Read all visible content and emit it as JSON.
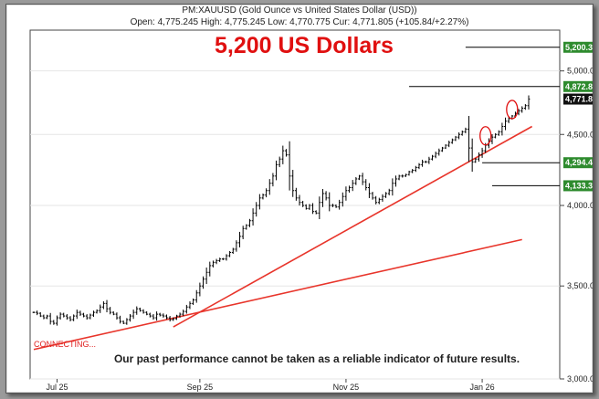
{
  "header": {
    "title": "PM:XAUUSD (Gold Ounce vs United States Dollar (USD))",
    "ohlc": "Open: 4,775.245 High: 4,775.245 Low: 4,770.775 Cur: 4,771.805 (+105.84/+2.27%)"
  },
  "annotation": {
    "headline": "5,200 US Dollars",
    "disclaimer": "Our past performance cannot be taken as a reliable indicator of future results.",
    "status": "CONNECTING..."
  },
  "colors": {
    "candle": "#000000",
    "trendline": "#e8352b",
    "circle": "#e01010",
    "target_box": "#2e8b2e",
    "current_box": "#111111",
    "headline": "#e01010"
  },
  "chart_data": {
    "type": "candlestick",
    "y_scale": "log",
    "ylim": [
      3000,
      5350
    ],
    "y_ticks": [
      {
        "value": 3000,
        "label": "3,000.0"
      },
      {
        "value": 3500,
        "label": "3,500.0"
      },
      {
        "value": 4000,
        "label": "4,000.0"
      },
      {
        "value": 4500,
        "label": "4,500.0"
      },
      {
        "value": 5000,
        "label": "5,000.0"
      }
    ],
    "x_ticks": [
      {
        "index": 7,
        "label": "Jul 25"
      },
      {
        "index": 50,
        "label": "Sep 25"
      },
      {
        "index": 94,
        "label": "Nov 25"
      },
      {
        "index": 135,
        "label": "Jan 26"
      }
    ],
    "n_bars": 150,
    "closes": [
      3350,
      3345,
      3330,
      3320,
      3330,
      3300,
      3290,
      3320,
      3340,
      3330,
      3320,
      3310,
      3330,
      3350,
      3340,
      3330,
      3320,
      3335,
      3350,
      3360,
      3380,
      3400,
      3370,
      3350,
      3340,
      3320,
      3300,
      3290,
      3310,
      3330,
      3350,
      3370,
      3360,
      3350,
      3340,
      3330,
      3320,
      3340,
      3335,
      3330,
      3320,
      3310,
      3315,
      3330,
      3340,
      3355,
      3380,
      3400,
      3420,
      3460,
      3500,
      3540,
      3580,
      3620,
      3640,
      3650,
      3660,
      3660,
      3680,
      3700,
      3720,
      3760,
      3800,
      3850,
      3870,
      3900,
      3950,
      4000,
      4050,
      4070,
      4100,
      4150,
      4200,
      4280,
      4320,
      4380,
      4350,
      4200,
      4100,
      4050,
      4020,
      4000,
      3980,
      4000,
      3960,
      3950,
      4020,
      4080,
      4050,
      4000,
      4000,
      3990,
      4020,
      4060,
      4100,
      4120,
      4150,
      4180,
      4200,
      4160,
      4120,
      4080,
      4050,
      4020,
      4040,
      4060,
      4080,
      4100,
      4150,
      4180,
      4200,
      4200,
      4210,
      4230,
      4240,
      4260,
      4280,
      4300,
      4300,
      4320,
      4340,
      4360,
      4380,
      4400,
      4420,
      4440,
      4460,
      4480,
      4500,
      4520,
      4540,
      4400,
      4300,
      4320,
      4350,
      4380,
      4420,
      4450,
      4480,
      4500,
      4520,
      4560,
      4600,
      4620,
      4640,
      4660,
      4680,
      4700,
      4720,
      4771.805
    ],
    "trendlines": [
      {
        "from": {
          "index": 0,
          "value": 3150
        },
        "to": {
          "index": 147,
          "value": 3780
        }
      },
      {
        "from": {
          "index": 42,
          "value": 3270
        },
        "to": {
          "index": 150,
          "value": 4560
        }
      }
    ],
    "circles": [
      {
        "index": 136,
        "value": 4490
      },
      {
        "index": 144,
        "value": 4690
      }
    ],
    "target_lines": [
      {
        "value": 5200,
        "label": "5,200.3",
        "from_index": 130
      },
      {
        "value": 4872,
        "label": "4,872.8",
        "from_index": 113
      },
      {
        "value": 4294,
        "label": "4,294.4",
        "from_index": 135
      },
      {
        "value": 4133,
        "label": "4,133.3",
        "from_index": 138
      }
    ],
    "current": {
      "value": 4771.805,
      "label": "4,771.8"
    }
  }
}
